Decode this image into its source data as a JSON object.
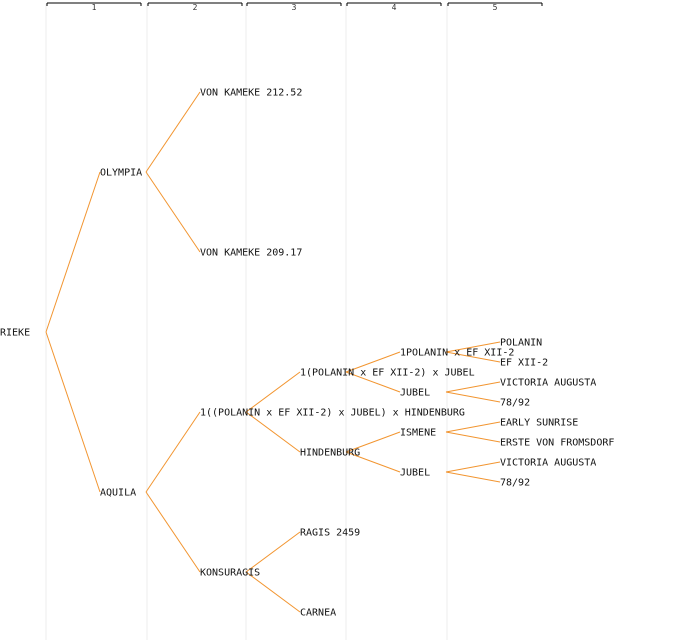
{
  "generations": [
    "1",
    "2",
    "3",
    "4",
    "5"
  ],
  "colors": {
    "edge": "#f29530",
    "column": "#eeeeee",
    "header": "#000000",
    "text": "#111111"
  },
  "root": {
    "id": "rieke",
    "label": "RIEKE",
    "children": [
      {
        "id": "olympia",
        "label": "OLYMPIA",
        "children": [
          {
            "id": "von-kameke-21252",
            "label": "VON KAMEKE 212.52"
          },
          {
            "id": "von-kameke-20917",
            "label": "VON KAMEKE 209.17"
          }
        ]
      },
      {
        "id": "aquila",
        "label": "AQUILA",
        "children": [
          {
            "id": "polanin-cross-hindenburg",
            "label": "1((POLANIN x EF XII-2) x JUBEL) x HINDENBURG",
            "children": [
              {
                "id": "polanin-cross-jubel",
                "label": "1(POLANIN x EF XII-2) x JUBEL",
                "children": [
                  {
                    "id": "polanin-cross-ef",
                    "label": "1POLANIN x EF XII-2",
                    "children": [
                      {
                        "id": "polanin",
                        "label": "POLANIN"
                      },
                      {
                        "id": "ef-xii-2",
                        "label": "EF XII-2"
                      }
                    ]
                  },
                  {
                    "id": "jubel-1",
                    "label": "JUBEL",
                    "children": [
                      {
                        "id": "victoria-augusta-1",
                        "label": "VICTORIA AUGUSTA"
                      },
                      {
                        "id": "78-92-1",
                        "label": "78/92"
                      }
                    ]
                  }
                ]
              },
              {
                "id": "hindenburg",
                "label": "HINDENBURG",
                "children": [
                  {
                    "id": "ismene",
                    "label": "ISMENE",
                    "children": [
                      {
                        "id": "early-sunrise",
                        "label": "EARLY SUNRISE"
                      },
                      {
                        "id": "erste-von-fromsdorf",
                        "label": "ERSTE VON FROMSDORF"
                      }
                    ]
                  },
                  {
                    "id": "jubel-2",
                    "label": "JUBEL",
                    "children": [
                      {
                        "id": "victoria-augusta-2",
                        "label": "VICTORIA AUGUSTA"
                      },
                      {
                        "id": "78-92-2",
                        "label": "78/92"
                      }
                    ]
                  }
                ]
              }
            ]
          },
          {
            "id": "konsuragis",
            "label": "KONSURAGIS",
            "children": [
              {
                "id": "ragis-2459",
                "label": "RAGIS 2459"
              },
              {
                "id": "carnea",
                "label": "CARNEA"
              }
            ]
          }
        ]
      }
    ]
  }
}
